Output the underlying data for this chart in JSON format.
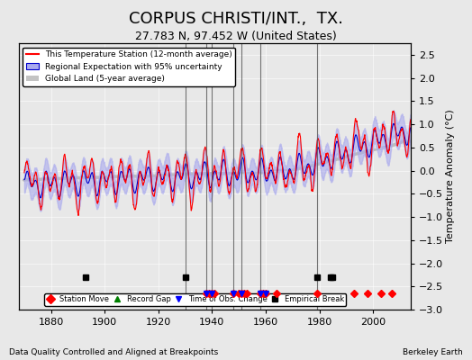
{
  "title": "CORPUS CHRISTI/INT.,  TX.",
  "subtitle": "27.783 N, 97.452 W (United States)",
  "ylabel": "Temperature Anomaly (°C)",
  "xlabel_note": "Data Quality Controlled and Aligned at Breakpoints",
  "source_note": "Berkeley Earth",
  "ylim": [
    -3.0,
    2.75
  ],
  "xlim": [
    1868,
    2014
  ],
  "yticks": [
    -3,
    -2.5,
    -2,
    -1.5,
    -1,
    -0.5,
    0,
    0.5,
    1,
    1.5,
    2,
    2.5
  ],
  "xticks": [
    1880,
    1900,
    1920,
    1940,
    1960,
    1980,
    2000
  ],
  "bg_color": "#e8e8e8",
  "plot_bg_color": "#e8e8e8",
  "station_move_years": [
    1938,
    1939,
    1940,
    1941,
    1948,
    1950,
    1951,
    1952,
    1953,
    1958,
    1959,
    1960,
    1964,
    1979,
    1993,
    1998,
    2003,
    2007
  ],
  "empirical_break_years": [
    1893,
    1930,
    1979,
    1984,
    1985
  ],
  "time_of_obs_years": [
    1938,
    1940,
    1948,
    1951,
    1958,
    1960
  ],
  "vertical_lines_years": [
    1930,
    1938,
    1940,
    1948,
    1951,
    1958,
    1979
  ],
  "legend_labels": [
    "This Temperature Station (12-month average)",
    "Regional Expectation with 95% uncertainty",
    "Global Land (5-year average)"
  ],
  "station_color": "#ff0000",
  "regional_color": "#0000cc",
  "regional_fill_color": "#aaaaee",
  "global_color": "#aaaaaa",
  "title_fontsize": 13,
  "subtitle_fontsize": 9,
  "axis_fontsize": 8,
  "tick_fontsize": 8
}
